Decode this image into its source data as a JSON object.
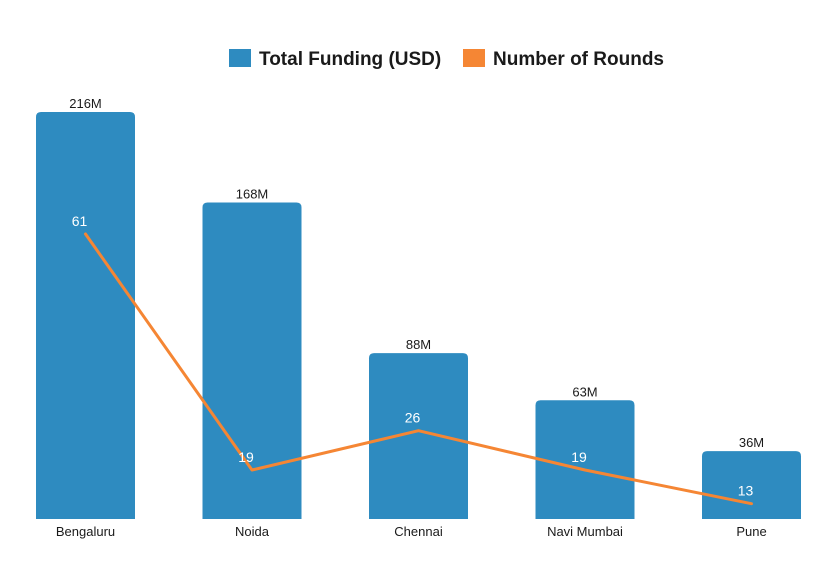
{
  "chart_data": {
    "type": "bar",
    "title": "",
    "xlabel": "",
    "ylabel": "",
    "categories": [
      "Bengaluru",
      "Noida",
      "Chennai",
      "Navi Mumbai",
      "Pune"
    ],
    "series": [
      {
        "name": "Total Funding (USD)",
        "type": "bar",
        "color": "#2e8bc0",
        "values": [
          216,
          168,
          88,
          63,
          36
        ],
        "labels": [
          "216M",
          "168M",
          "88M",
          "63M",
          "36M"
        ]
      },
      {
        "name": "Number of Rounds",
        "type": "line",
        "color": "#f58634",
        "values": [
          61,
          19,
          26,
          19,
          13
        ],
        "labels": [
          "61",
          "19",
          "26",
          "19",
          "13"
        ]
      }
    ],
    "legend_position": "top-center",
    "grid": false,
    "axes_visible": false
  }
}
